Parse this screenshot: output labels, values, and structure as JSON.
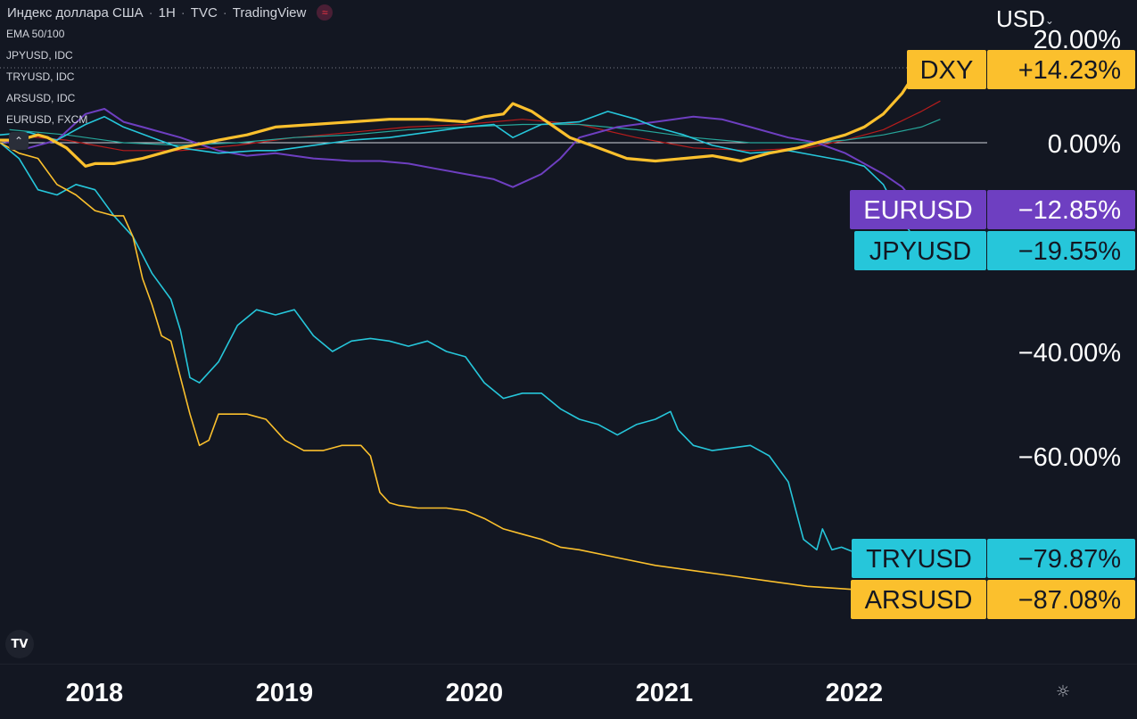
{
  "header": {
    "symbol": "Индекс доллара США",
    "interval": "1H",
    "exchange": "TVC",
    "source": "TradingView"
  },
  "legend_items": [
    "EMA 50/100",
    "JPYUSD, IDC",
    "TRYUSD, IDC",
    "ARSUSD, IDC",
    "EURUSD, FXCM"
  ],
  "currency": "USD",
  "icons": {
    "logo": "tradingview-logo-icon",
    "settings": "gear-icon",
    "collapse": "chevron-up-icon",
    "wave": "wave-icon"
  },
  "colors": {
    "background": "#131722",
    "dxy": "#fbc02d",
    "eurusd": "#6e3fc1",
    "jpyusd": "#26c6da",
    "tryusd": "#26c6da",
    "arsusd": "#fbc02d",
    "ema50": "#b71c1c",
    "ema100": "#26a69a"
  },
  "chart_data": {
    "type": "line",
    "y_unit": "%",
    "ylim": [
      -92,
      24
    ],
    "y_ticks": [
      {
        "value": 20,
        "label": "20.00%"
      },
      {
        "value": 0,
        "label": "0.00%"
      },
      {
        "value": -40,
        "label": "−40.00%"
      },
      {
        "value": -60,
        "label": "−60.00%"
      }
    ],
    "x_range": [
      2017.55,
      2022.55
    ],
    "x_ticks": [
      {
        "value": 2018,
        "label": "2018"
      },
      {
        "value": 2019,
        "label": "2019"
      },
      {
        "value": 2020,
        "label": "2020"
      },
      {
        "value": 2021,
        "label": "2021"
      },
      {
        "value": 2022,
        "label": "2022"
      }
    ],
    "zero_line": 0,
    "series": [
      {
        "name": "DXY",
        "color": "#fbc02d",
        "width": 3.2,
        "last_label": "+14.23%",
        "last_value": 14.23,
        "x": [
          2017.55,
          2017.65,
          2017.75,
          2017.8,
          2017.9,
          2018.0,
          2018.05,
          2018.15,
          2018.3,
          2018.5,
          2018.7,
          2018.85,
          2019.0,
          2019.2,
          2019.4,
          2019.6,
          2019.8,
          2020.0,
          2020.1,
          2020.2,
          2020.25,
          2020.35,
          2020.45,
          2020.55,
          2020.7,
          2020.85,
          2021.0,
          2021.15,
          2021.3,
          2021.45,
          2021.6,
          2021.75,
          2021.9,
          2022.0,
          2022.1,
          2022.2,
          2022.3,
          2022.38,
          2022.42
        ],
        "y": [
          0.5,
          0.5,
          1.5,
          1.0,
          -1.0,
          -4.5,
          -4.0,
          -4.0,
          -3.0,
          -1.0,
          0.5,
          1.5,
          3.0,
          3.5,
          4.0,
          4.5,
          4.5,
          4.0,
          5.0,
          5.5,
          7.5,
          6.0,
          3.5,
          1.0,
          -1.0,
          -3.0,
          -3.5,
          -3.0,
          -2.5,
          -3.5,
          -2.0,
          -1.0,
          0.5,
          1.5,
          3.0,
          5.5,
          9.5,
          14.0,
          14.23
        ]
      },
      {
        "name": "EURUSD",
        "color": "#6e3fc1",
        "width": 2,
        "last_label": "−12.85%",
        "last_value": -12.85,
        "x": [
          2017.55,
          2017.7,
          2017.85,
          2018.0,
          2018.1,
          2018.2,
          2018.3,
          2018.5,
          2018.7,
          2018.85,
          2019.0,
          2019.2,
          2019.4,
          2019.55,
          2019.7,
          2019.85,
          2020.0,
          2020.15,
          2020.25,
          2020.4,
          2020.5,
          2020.6,
          2020.8,
          2021.0,
          2021.1,
          2021.2,
          2021.35,
          2021.5,
          2021.7,
          2021.85,
          2022.0,
          2022.1,
          2022.2,
          2022.3,
          2022.38,
          2022.42
        ],
        "y": [
          0.5,
          -1.0,
          0.5,
          5.5,
          6.5,
          4.0,
          3.0,
          1.0,
          -1.5,
          -2.5,
          -2.0,
          -3.0,
          -3.5,
          -3.5,
          -4.0,
          -5.0,
          -6.0,
          -7.0,
          -8.5,
          -6.0,
          -3.0,
          1.0,
          3.0,
          4.0,
          4.5,
          5.0,
          4.5,
          3.0,
          1.0,
          0.0,
          -2.0,
          -4.0,
          -6.0,
          -8.5,
          -12.0,
          -12.85
        ]
      },
      {
        "name": "JPYUSD",
        "color": "#26c6da",
        "width": 1.6,
        "last_label": "−19.55%",
        "last_value": -19.55,
        "x": [
          2017.55,
          2017.7,
          2017.85,
          2018.0,
          2018.1,
          2018.2,
          2018.35,
          2018.5,
          2018.7,
          2018.9,
          2019.0,
          2019.2,
          2019.4,
          2019.6,
          2019.8,
          2020.0,
          2020.15,
          2020.25,
          2020.4,
          2020.6,
          2020.75,
          2020.9,
          2021.0,
          2021.15,
          2021.3,
          2021.5,
          2021.7,
          2021.85,
          2022.0,
          2022.1,
          2022.2,
          2022.3,
          2022.38,
          2022.42
        ],
        "y": [
          1.5,
          2.0,
          0.5,
          3.5,
          5.0,
          3.0,
          1.0,
          -1.0,
          -2.0,
          -1.5,
          -1.5,
          -0.5,
          0.5,
          1.0,
          2.0,
          3.0,
          3.5,
          1.0,
          3.5,
          4.0,
          6.0,
          4.5,
          3.0,
          1.5,
          -0.5,
          -2.0,
          -1.5,
          -2.5,
          -3.5,
          -4.5,
          -8.0,
          -15.0,
          -19.0,
          -19.55
        ]
      },
      {
        "name": "TRYUSD",
        "color": "#26c6da",
        "width": 1.6,
        "last_label": "−79.87%",
        "last_value": -79.87,
        "x": [
          2017.55,
          2017.65,
          2017.75,
          2017.85,
          2017.95,
          2018.05,
          2018.15,
          2018.25,
          2018.35,
          2018.45,
          2018.5,
          2018.55,
          2018.6,
          2018.7,
          2018.8,
          2018.9,
          2019.0,
          2019.1,
          2019.2,
          2019.3,
          2019.4,
          2019.5,
          2019.6,
          2019.7,
          2019.8,
          2019.9,
          2020.0,
          2020.1,
          2020.2,
          2020.3,
          2020.4,
          2020.5,
          2020.6,
          2020.7,
          2020.8,
          2020.9,
          2021.0,
          2021.08,
          2021.12,
          2021.2,
          2021.3,
          2021.4,
          2021.5,
          2021.6,
          2021.7,
          2021.78,
          2021.85,
          2021.88,
          2021.93,
          2021.98,
          2022.05,
          2022.12,
          2022.2,
          2022.3,
          2022.38,
          2022.42
        ],
        "y": [
          0.0,
          -3.0,
          -9.0,
          -10.0,
          -8.0,
          -9.0,
          -14.0,
          -18.0,
          -25.0,
          -30.0,
          -36.0,
          -45.0,
          -46.0,
          -42.0,
          -35.0,
          -32.0,
          -33.0,
          -32.0,
          -37.0,
          -40.0,
          -38.0,
          -37.5,
          -38.0,
          -39.0,
          -38.0,
          -40.0,
          -41.0,
          -46.0,
          -49.0,
          -48.0,
          -48.0,
          -51.0,
          -53.0,
          -54.0,
          -56.0,
          -54.0,
          -53.0,
          -51.5,
          -55.0,
          -58.0,
          -59.0,
          -58.5,
          -58.0,
          -60.0,
          -65.0,
          -76.0,
          -78.0,
          -74.0,
          -78.0,
          -77.5,
          -78.5,
          -78.5,
          -79.0,
          -79.5,
          -79.8,
          -79.87
        ]
      },
      {
        "name": "ARSUSD",
        "color": "#fbc02d",
        "width": 1.6,
        "last_label": "−87.08%",
        "last_value": -87.08,
        "x": [
          2017.55,
          2017.65,
          2017.75,
          2017.85,
          2017.95,
          2018.05,
          2018.15,
          2018.2,
          2018.25,
          2018.3,
          2018.35,
          2018.4,
          2018.45,
          2018.5,
          2018.55,
          2018.6,
          2018.65,
          2018.7,
          2018.75,
          2018.85,
          2018.95,
          2019.05,
          2019.15,
          2019.25,
          2019.35,
          2019.45,
          2019.5,
          2019.55,
          2019.6,
          2019.65,
          2019.75,
          2019.9,
          2020.0,
          2020.1,
          2020.2,
          2020.3,
          2020.4,
          2020.5,
          2020.6,
          2020.8,
          2021.0,
          2021.2,
          2021.4,
          2021.6,
          2021.8,
          2022.0,
          2022.2,
          2022.35,
          2022.42
        ],
        "y": [
          0.0,
          -2.0,
          -3.0,
          -8.0,
          -10.0,
          -13.0,
          -14.0,
          -14.0,
          -18.0,
          -26.0,
          -31.0,
          -37.0,
          -38.0,
          -45.0,
          -52.0,
          -58.0,
          -57.0,
          -52.0,
          -52.0,
          -52.0,
          -53.0,
          -57.0,
          -59.0,
          -59.0,
          -58.0,
          -58.0,
          -60.0,
          -67.0,
          -69.0,
          -69.5,
          -70.0,
          -70.0,
          -70.5,
          -72.0,
          -74.0,
          -75.0,
          -76.0,
          -77.5,
          -78.0,
          -79.5,
          -81.0,
          -82.0,
          -83.0,
          -84.0,
          -85.0,
          -85.5,
          -86.0,
          -87.0,
          -87.08
        ]
      },
      {
        "name": "EMA 50",
        "color": "#b71c1c",
        "width": 1.2,
        "x": [
          2017.6,
          2017.9,
          2018.2,
          2018.5,
          2018.8,
          2019.1,
          2019.4,
          2019.7,
          2020.0,
          2020.3,
          2020.6,
          2020.9,
          2021.2,
          2021.5,
          2021.8,
          2022.0,
          2022.2,
          2022.4,
          2022.5
        ],
        "y": [
          1.5,
          0.5,
          -1.5,
          -1.5,
          -0.5,
          1.0,
          2.0,
          3.0,
          3.5,
          4.5,
          3.5,
          1.0,
          -1.0,
          -1.5,
          -1.0,
          0.5,
          2.5,
          6.0,
          8.0
        ]
      },
      {
        "name": "EMA 100",
        "color": "#26a69a",
        "width": 1.2,
        "x": [
          2017.6,
          2017.9,
          2018.2,
          2018.5,
          2018.8,
          2019.1,
          2019.4,
          2019.7,
          2020.0,
          2020.3,
          2020.6,
          2020.9,
          2021.2,
          2021.5,
          2021.8,
          2022.0,
          2022.2,
          2022.4,
          2022.5
        ],
        "y": [
          2.5,
          1.5,
          0.0,
          -0.5,
          0.0,
          1.0,
          1.5,
          2.5,
          3.0,
          3.5,
          3.5,
          2.5,
          1.0,
          0.0,
          0.0,
          0.5,
          1.5,
          3.0,
          4.5
        ]
      }
    ]
  }
}
